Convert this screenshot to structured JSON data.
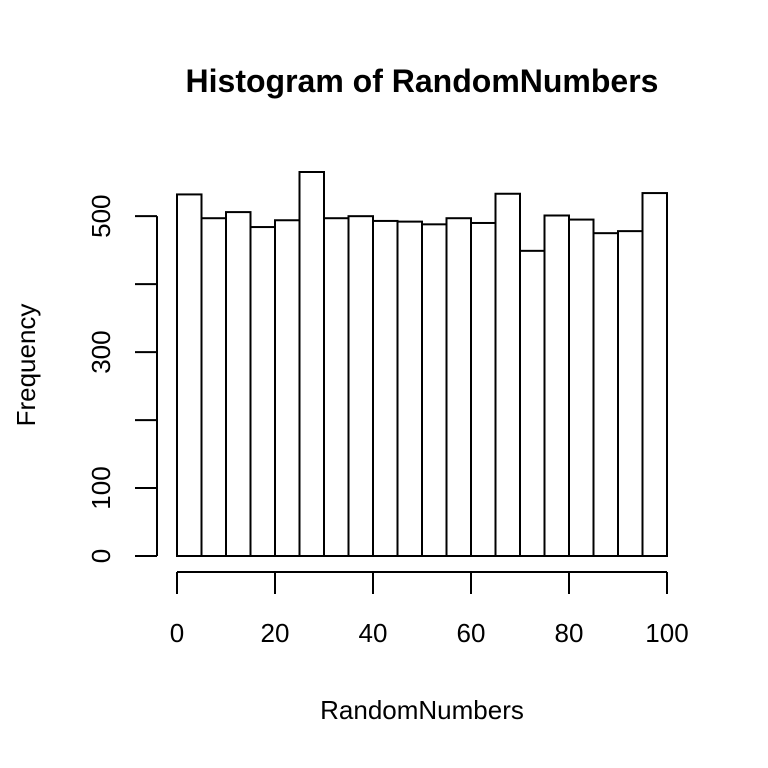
{
  "chart_data": {
    "type": "bar",
    "title": "Histogram of RandomNumbers",
    "xlabel": "RandomNumbers",
    "ylabel": "Frequency",
    "bin_edges": [
      0,
      5,
      10,
      15,
      20,
      25,
      30,
      35,
      40,
      45,
      50,
      55,
      60,
      65,
      70,
      75,
      80,
      85,
      90,
      95,
      100
    ],
    "values": [
      532,
      497,
      506,
      484,
      494,
      565,
      497,
      500,
      493,
      492,
      488,
      497,
      490,
      533,
      449,
      501,
      495,
      475,
      478,
      534
    ],
    "xlim": [
      0,
      100
    ],
    "ylim": [
      0,
      565
    ],
    "x_ticks": [
      0,
      20,
      40,
      60,
      80,
      100
    ],
    "x_tick_labels": [
      "0",
      "20",
      "40",
      "60",
      "80",
      "100"
    ],
    "y_ticks": [
      0,
      100,
      200,
      300,
      400,
      500
    ],
    "y_tick_labels": [
      "0",
      "100",
      "",
      "300",
      "",
      "500"
    ],
    "grid": false,
    "legend": "none"
  }
}
